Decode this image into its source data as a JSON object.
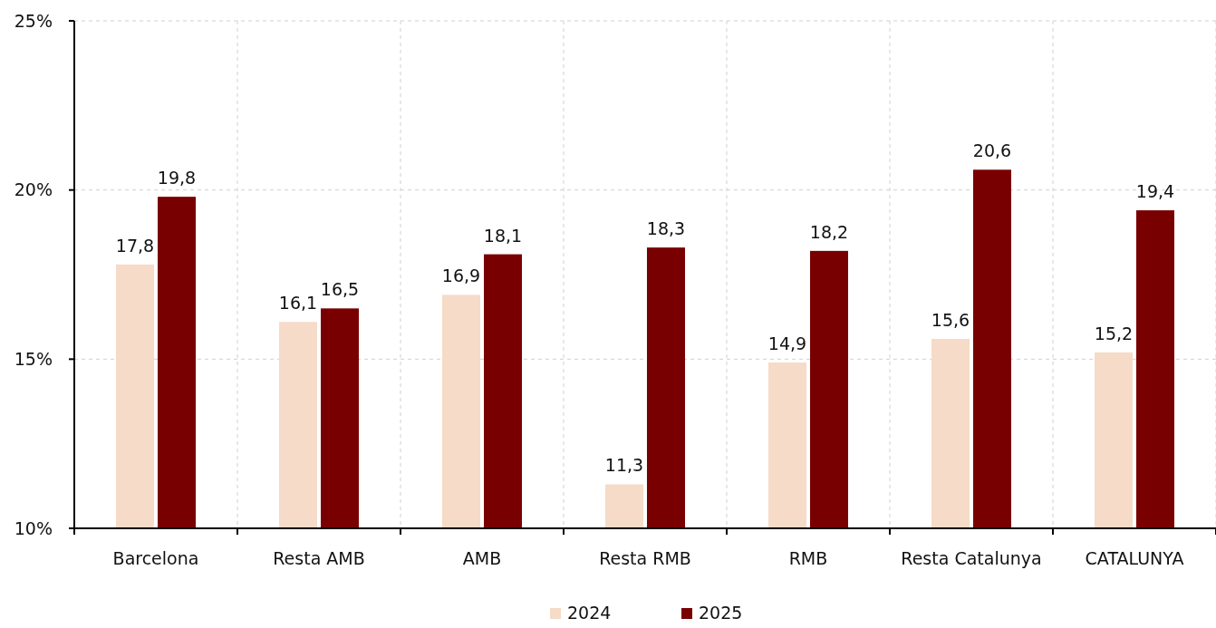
{
  "chart_data": {
    "type": "bar",
    "categories": [
      "Barcelona",
      "Resta AMB",
      "AMB",
      "Resta RMB",
      "RMB",
      "Resta Catalunya",
      "CATALUNYA"
    ],
    "series": [
      {
        "name": "2024",
        "color": "#f5dbc8",
        "values": [
          17.8,
          16.1,
          16.9,
          11.3,
          14.9,
          15.6,
          15.2
        ],
        "value_labels": [
          "17,8",
          "16,1",
          "16,9",
          "11,3",
          "14,9",
          "15,6",
          "15,2"
        ]
      },
      {
        "name": "2025",
        "color": "#790000",
        "values": [
          19.8,
          16.5,
          18.1,
          18.3,
          18.2,
          20.6,
          19.4
        ],
        "value_labels": [
          "19,8",
          "16,5",
          "18,1",
          "18,3",
          "18,2",
          "20,6",
          "19,4"
        ]
      }
    ],
    "ylim": [
      10,
      25
    ],
    "yticks": [
      {
        "value": 10,
        "label": "10%"
      },
      {
        "value": 15,
        "label": "15%"
      },
      {
        "value": 20,
        "label": "20%"
      },
      {
        "value": 25,
        "label": "25%"
      }
    ],
    "grid": true,
    "legend": "bottom"
  }
}
